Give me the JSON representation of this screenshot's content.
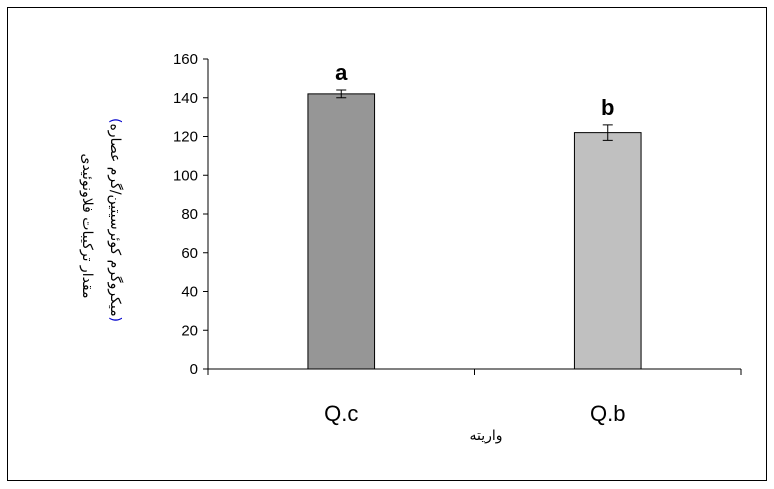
{
  "chart_data": {
    "type": "bar",
    "categories": [
      "Q.c",
      "Q.b"
    ],
    "values": [
      142,
      122
    ],
    "errors": [
      2,
      4
    ],
    "significance_letters": [
      "a",
      "b"
    ],
    "xlabel": "واریته",
    "ylabel_line1": "مقدار ترکیبات فلاونوئیدی",
    "ylabel_line2_open": "(",
    "ylabel_line2": "میکروگرم کوئرسیتین/گرم عصاره",
    "ylabel_line2_close": ")",
    "yticks": [
      0,
      20,
      40,
      60,
      80,
      100,
      120,
      140,
      160
    ],
    "ylim": [
      0,
      160
    ],
    "grid": false,
    "colors": {
      "bar_1": "#969696",
      "bar_2": "#c0c0c0",
      "outline": "#000000",
      "paren_accent": "#0000cc"
    }
  }
}
